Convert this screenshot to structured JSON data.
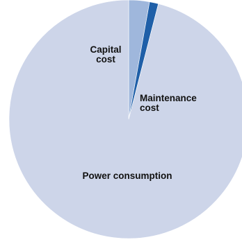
{
  "chart_data": {
    "type": "pie",
    "title": "",
    "slices": [
      {
        "label": [
          "Capital",
          "cost"
        ],
        "value": 2.8,
        "color": "#9fb7dc"
      },
      {
        "label": [
          "Maintenance",
          "cost"
        ],
        "value": 1.2,
        "color": "#1f5fa8"
      },
      {
        "label": [
          "Power consumption"
        ],
        "value": 96.0,
        "color": "#cdd5e9"
      }
    ],
    "legend": "none",
    "start_angle": "12 o'clock",
    "direction": "clockwise"
  }
}
